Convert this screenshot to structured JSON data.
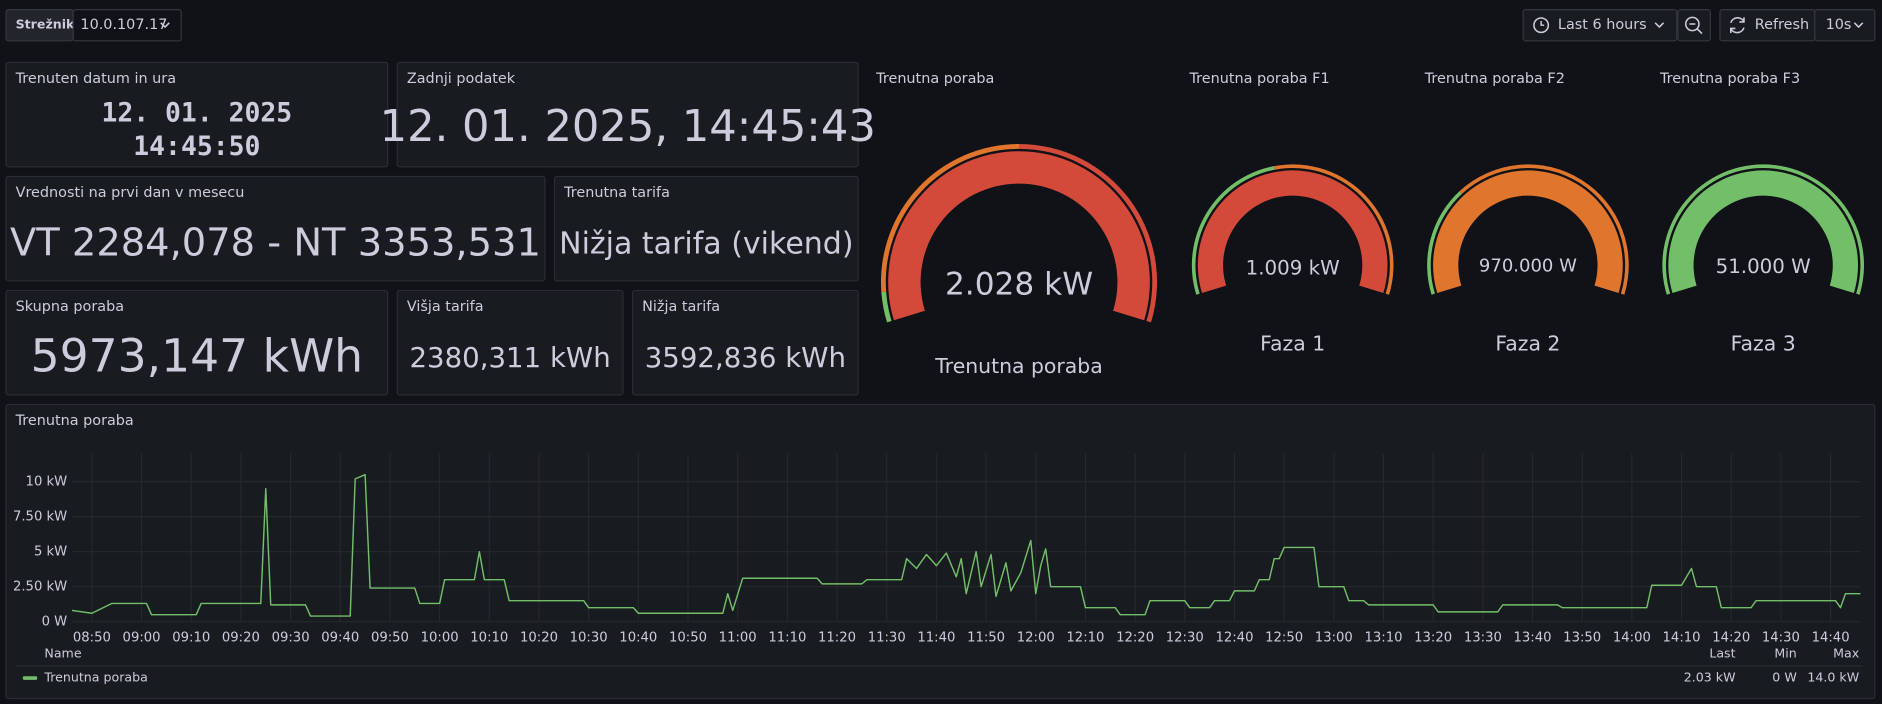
{
  "toolbar": {
    "server_label": "Strežnik",
    "server_value": "10.0.107.17",
    "time_range": "Last 6 hours",
    "refresh": "Refresh",
    "refresh_interval": "10s"
  },
  "stats": [
    {
      "title": "Trenuten datum in ura",
      "lines": [
        "12. 01. 2025",
        "14:45:50"
      ],
      "color": "#ccccdc"
    },
    {
      "title": "Zadnji podatek",
      "lines": [
        "12. 01. 2025, 14:45:43"
      ],
      "color": "#d8d9da"
    },
    {
      "title": "Vrednosti na prvi dan v mesecu",
      "lines": [
        "VT 2284,078 - NT 3353,531"
      ],
      "color": "#73bf69"
    },
    {
      "title": "Trenutna tarifa",
      "lines": [
        "Nižja tarifa (vikend)"
      ],
      "color": "#73bf69"
    },
    {
      "title": "Skupna poraba",
      "lines": [
        "5973,147 kWh"
      ],
      "color": "#c4162a"
    },
    {
      "title": "Višja tarifa",
      "lines": [
        "2380,311 kWh"
      ],
      "color": "#f2495c"
    },
    {
      "title": "Nižja tarifa",
      "lines": [
        "3592,836 kWh"
      ],
      "color": "#e02f44"
    }
  ],
  "gauges": [
    {
      "title": "Trenutna poraba",
      "value": "2.028 kW",
      "label": "Trenutna poraba",
      "color": "#d44a3a"
    },
    {
      "title": "Trenutna poraba F1",
      "value": "1.009 kW",
      "label": "Faza 1",
      "color": "#d44a3a"
    },
    {
      "title": "Trenutna poraba F2",
      "value": "970.000 W",
      "label": "Faza 2",
      "color": "#e0752d"
    },
    {
      "title": "Trenutna poraba F3",
      "value": "51.000 W",
      "label": "Faza 3",
      "color": "#73bf69"
    }
  ],
  "chart_data": {
    "type": "line",
    "title": "Trenutna poraba",
    "x": [
      "08:46",
      "08:50",
      "08:54",
      "09:01",
      "09:02",
      "09:11",
      "09:12",
      "09:24",
      "09:25",
      "09:26",
      "09:33",
      "09:34",
      "09:42",
      "09:43",
      "09:45",
      "09:46",
      "09:55",
      "09:56",
      "10:00",
      "10:01",
      "10:07",
      "10:08",
      "10:09",
      "10:13",
      "10:14",
      "10:29",
      "10:30",
      "10:39",
      "10:40",
      "10:57",
      "10:58",
      "10:59",
      "11:01",
      "11:16",
      "11:17",
      "11:25",
      "11:26",
      "11:33",
      "11:34",
      "11:36",
      "11:38",
      "11:40",
      "11:42",
      "11:44",
      "11:45",
      "11:46",
      "11:48",
      "11:49",
      "11:51",
      "11:52",
      "11:54",
      "11:55",
      "11:57",
      "11:59",
      "12:00",
      "12:01",
      "12:02",
      "12:03",
      "12:09",
      "12:10",
      "12:16",
      "12:17",
      "12:22",
      "12:23",
      "12:30",
      "12:31",
      "12:35",
      "12:36",
      "12:39",
      "12:40",
      "12:44",
      "12:45",
      "12:47",
      "12:48",
      "12:49",
      "12:50",
      "12:56",
      "12:57",
      "13:02",
      "13:03",
      "13:06",
      "13:07",
      "13:20",
      "13:21",
      "13:33",
      "13:34",
      "13:45",
      "13:46",
      "14:03",
      "14:04",
      "14:10",
      "14:12",
      "14:13",
      "14:17",
      "14:18",
      "14:24",
      "14:25",
      "14:41",
      "14:42",
      "14:43",
      "14:46"
    ],
    "series": [
      {
        "name": "Trenutna poraba",
        "color": "#73bf69",
        "values": [
          0.8,
          0.6,
          1.3,
          1.3,
          0.5,
          0.5,
          1.3,
          1.3,
          9.5,
          1.2,
          1.2,
          0.4,
          0.4,
          10.2,
          10.5,
          2.4,
          2.4,
          1.3,
          1.3,
          3.0,
          3.0,
          5.0,
          3.0,
          3.0,
          1.5,
          1.5,
          1.0,
          1.0,
          0.6,
          0.6,
          2.0,
          0.8,
          3.1,
          3.1,
          2.7,
          2.7,
          3.0,
          3.0,
          4.5,
          3.8,
          4.8,
          4.0,
          4.9,
          3.2,
          4.5,
          2.0,
          5.0,
          2.5,
          4.8,
          1.8,
          4.2,
          2.2,
          3.5,
          5.8,
          2.0,
          4.0,
          5.2,
          2.5,
          2.5,
          1.0,
          1.0,
          0.5,
          0.5,
          1.5,
          1.5,
          1.0,
          1.0,
          1.5,
          1.5,
          2.2,
          2.2,
          3.0,
          3.0,
          4.5,
          4.5,
          5.3,
          5.3,
          2.5,
          2.5,
          1.5,
          1.5,
          1.2,
          1.2,
          0.7,
          0.7,
          1.2,
          1.2,
          1.0,
          1.0,
          2.6,
          2.6,
          3.8,
          2.5,
          2.5,
          1.0,
          1.0,
          1.5,
          1.5,
          1.0,
          2.0,
          2.0
        ],
        "legend_values": [
          "2.03 kW",
          "0 W",
          "14.0 kW"
        ]
      }
    ],
    "legend_columns": [
      "Name",
      "Last",
      "Min",
      "Max"
    ],
    "xlim": [
      "08:46",
      "14:46"
    ],
    "xticks": [
      "08:50",
      "09:00",
      "09:10",
      "09:20",
      "09:30",
      "09:40",
      "09:50",
      "10:00",
      "10:10",
      "10:20",
      "10:30",
      "10:40",
      "10:50",
      "11:00",
      "11:10",
      "11:20",
      "11:30",
      "11:40",
      "11:50",
      "12:00",
      "12:10",
      "12:20",
      "12:30",
      "12:40",
      "12:50",
      "13:00",
      "13:10",
      "13:20",
      "13:30",
      "13:40",
      "13:50",
      "14:00",
      "14:10",
      "14:20",
      "14:30",
      "14:40"
    ],
    "ylim": [
      0,
      12
    ],
    "yticks": [
      {
        "value": 0,
        "label": "0 W"
      },
      {
        "value": 2.5,
        "label": "2.50 kW"
      },
      {
        "value": 5,
        "label": "5 kW"
      },
      {
        "value": 7.5,
        "label": "7.50 kW"
      },
      {
        "value": 10,
        "label": "10 kW"
      }
    ],
    "grid": true
  }
}
